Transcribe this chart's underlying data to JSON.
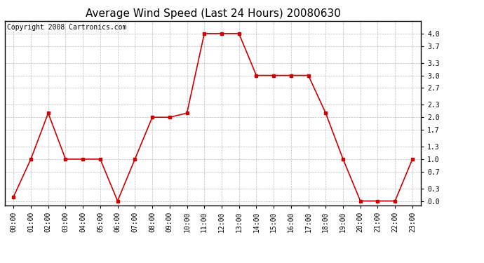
{
  "title": "Average Wind Speed (Last 24 Hours) 20080630",
  "copyright": "Copyright 2008 Cartronics.com",
  "hours": [
    "00:00",
    "01:00",
    "02:00",
    "03:00",
    "04:00",
    "05:00",
    "06:00",
    "07:00",
    "08:00",
    "09:00",
    "10:00",
    "11:00",
    "12:00",
    "13:00",
    "14:00",
    "15:00",
    "16:00",
    "17:00",
    "18:00",
    "19:00",
    "20:00",
    "21:00",
    "22:00",
    "23:00"
  ],
  "values": [
    0.1,
    1.0,
    2.1,
    1.0,
    1.0,
    1.0,
    0.0,
    1.0,
    2.0,
    2.0,
    2.1,
    4.0,
    4.0,
    4.0,
    3.0,
    3.0,
    3.0,
    3.0,
    2.1,
    1.0,
    0.0,
    0.0,
    0.0,
    1.0
  ],
  "yticks": [
    0.0,
    0.3,
    0.7,
    1.0,
    1.3,
    1.7,
    2.0,
    2.3,
    2.7,
    3.0,
    3.3,
    3.7,
    4.0
  ],
  "ylim": [
    -0.1,
    4.3
  ],
  "line_color": "#cc0000",
  "marker_color": "#cc0000",
  "marker": "s",
  "marker_size": 2.5,
  "line_width": 1.2,
  "bg_color": "#ffffff",
  "grid_color": "#bbbbbb",
  "title_fontsize": 11,
  "tick_fontsize": 7,
  "copyright_fontsize": 7
}
